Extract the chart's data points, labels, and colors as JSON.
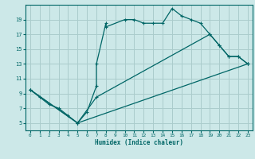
{
  "xlabel": "Humidex (Indice chaleur)",
  "bg_color": "#cce8e8",
  "grid_color": "#aacccc",
  "line_color": "#006666",
  "xlim": [
    -0.5,
    23.5
  ],
  "ylim": [
    4,
    21
  ],
  "xticks": [
    0,
    1,
    2,
    3,
    4,
    5,
    6,
    7,
    8,
    9,
    10,
    11,
    12,
    13,
    14,
    15,
    16,
    17,
    18,
    19,
    20,
    21,
    22,
    23
  ],
  "yticks": [
    5,
    7,
    9,
    11,
    13,
    15,
    17,
    19
  ],
  "line1_x": [
    0,
    1,
    2,
    3,
    4,
    5,
    6,
    7,
    7,
    8,
    8,
    10,
    11,
    12,
    13,
    14,
    15,
    16,
    17,
    18,
    19,
    20,
    21,
    22,
    23
  ],
  "line1_y": [
    9.5,
    8.5,
    7.5,
    7,
    6,
    5,
    6.5,
    10,
    13,
    18.5,
    18,
    19,
    19,
    18.5,
    18.5,
    18.5,
    20.5,
    19.5,
    19,
    18.5,
    17,
    15.5,
    14,
    14,
    13
  ],
  "line2_x": [
    0,
    5,
    7,
    19,
    20,
    21,
    22,
    23
  ],
  "line2_y": [
    9.5,
    5,
    8.5,
    17,
    15.5,
    14,
    14,
    13
  ],
  "line3_x": [
    0,
    5,
    23
  ],
  "line3_y": [
    9.5,
    5,
    13
  ]
}
